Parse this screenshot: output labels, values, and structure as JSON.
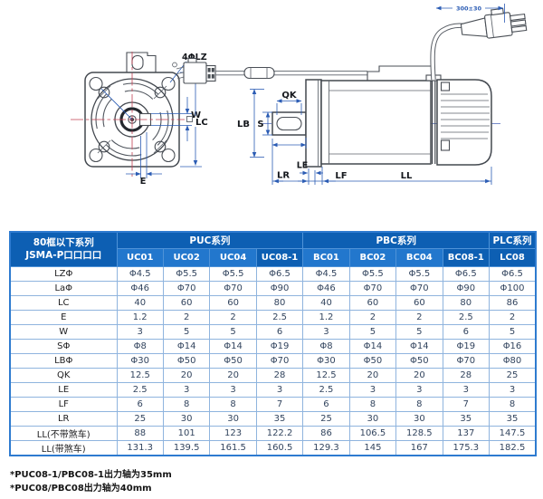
{
  "drawing": {
    "front": {
      "bolt_label": "4ΦLZ",
      "pilot_label": "Φ La",
      "key_width_label": "W",
      "frame_label": "LC",
      "offset_label": "E"
    },
    "side": {
      "key_length_label": "QK",
      "shaft_label": "S",
      "body_dia_label": "LB",
      "boss_label": "LE",
      "shaft_len_label": "LR",
      "flange_label": "LF",
      "body_len_label": "LL",
      "cable_length_label": "300±30"
    }
  },
  "table": {
    "corner": {
      "line1": "80框以下系列",
      "line2": "JSMA-P口口口口"
    },
    "groups": [
      {
        "label": "PUC系列",
        "span": 4
      },
      {
        "label": "PBC系列",
        "span": 4
      },
      {
        "label": "PLC系列",
        "span": 1
      }
    ],
    "columns": [
      {
        "label": "UC01",
        "highlight": false
      },
      {
        "label": "UC02",
        "highlight": false
      },
      {
        "label": "UC04",
        "highlight": false
      },
      {
        "label": "UC08-1",
        "highlight": true
      },
      {
        "label": "BC01",
        "highlight": false
      },
      {
        "label": "BC02",
        "highlight": false
      },
      {
        "label": "BC04",
        "highlight": false
      },
      {
        "label": "BC08-1",
        "highlight": true
      },
      {
        "label": "LC08",
        "highlight": true
      }
    ],
    "rows": [
      {
        "label": "LZΦ",
        "values": [
          "Φ4.5",
          "Φ5.5",
          "Φ5.5",
          "Φ6.5",
          "Φ4.5",
          "Φ5.5",
          "Φ5.5",
          "Φ6.5",
          "Φ6.5"
        ]
      },
      {
        "label": "LaΦ",
        "values": [
          "Φ46",
          "Φ70",
          "Φ70",
          "Φ90",
          "Φ46",
          "Φ70",
          "Φ70",
          "Φ90",
          "Φ100"
        ]
      },
      {
        "label": "LC",
        "values": [
          "40",
          "60",
          "60",
          "80",
          "40",
          "60",
          "60",
          "80",
          "86"
        ]
      },
      {
        "label": "E",
        "values": [
          "1.2",
          "2",
          "2",
          "2.5",
          "1.2",
          "2",
          "2",
          "2.5",
          "2"
        ]
      },
      {
        "label": "W",
        "values": [
          "3",
          "5",
          "5",
          "6",
          "3",
          "5",
          "5",
          "6",
          "5"
        ]
      },
      {
        "label": "SΦ",
        "values": [
          "Φ8",
          "Φ14",
          "Φ14",
          "Φ19",
          "Φ8",
          "Φ14",
          "Φ14",
          "Φ19",
          "Φ16"
        ]
      },
      {
        "label": "LBΦ",
        "values": [
          "Φ30",
          "Φ50",
          "Φ50",
          "Φ70",
          "Φ30",
          "Φ50",
          "Φ50",
          "Φ70",
          "Φ80"
        ]
      },
      {
        "label": "QK",
        "values": [
          "12.5",
          "20",
          "20",
          "28",
          "12.5",
          "20",
          "20",
          "28",
          "25"
        ]
      },
      {
        "label": "LE",
        "values": [
          "2.5",
          "3",
          "3",
          "3",
          "2.5",
          "3",
          "3",
          "3",
          "3"
        ]
      },
      {
        "label": "LF",
        "values": [
          "6",
          "8",
          "8",
          "7",
          "6",
          "8",
          "8",
          "7",
          "8"
        ]
      },
      {
        "label": "LR",
        "values": [
          "25",
          "30",
          "30",
          "35",
          "25",
          "30",
          "30",
          "35",
          "35"
        ]
      },
      {
        "label": "LL(不带煞车)",
        "values": [
          "88",
          "101",
          "123",
          "122.2",
          "86",
          "106.5",
          "128.5",
          "137",
          "147.5"
        ]
      },
      {
        "label": "LL(带煞车)",
        "values": [
          "131.3",
          "139.5",
          "161.5",
          "160.5",
          "129.3",
          "145",
          "167",
          "175.3",
          "182.5"
        ]
      }
    ]
  },
  "footnotes": [
    "*PUC08-1/PBC08-1出力轴为35mm",
    "*PUC08/PBC08出力轴为40mm"
  ],
  "colors": {
    "header_dark": "#0d5fb3",
    "header_medium": "#2277cd",
    "table_outer_border": "#2e7bd0",
    "table_grid_line": "#8fb4de",
    "dimension_blue": "#2b5cb4",
    "centerline_red": "#c24052"
  }
}
